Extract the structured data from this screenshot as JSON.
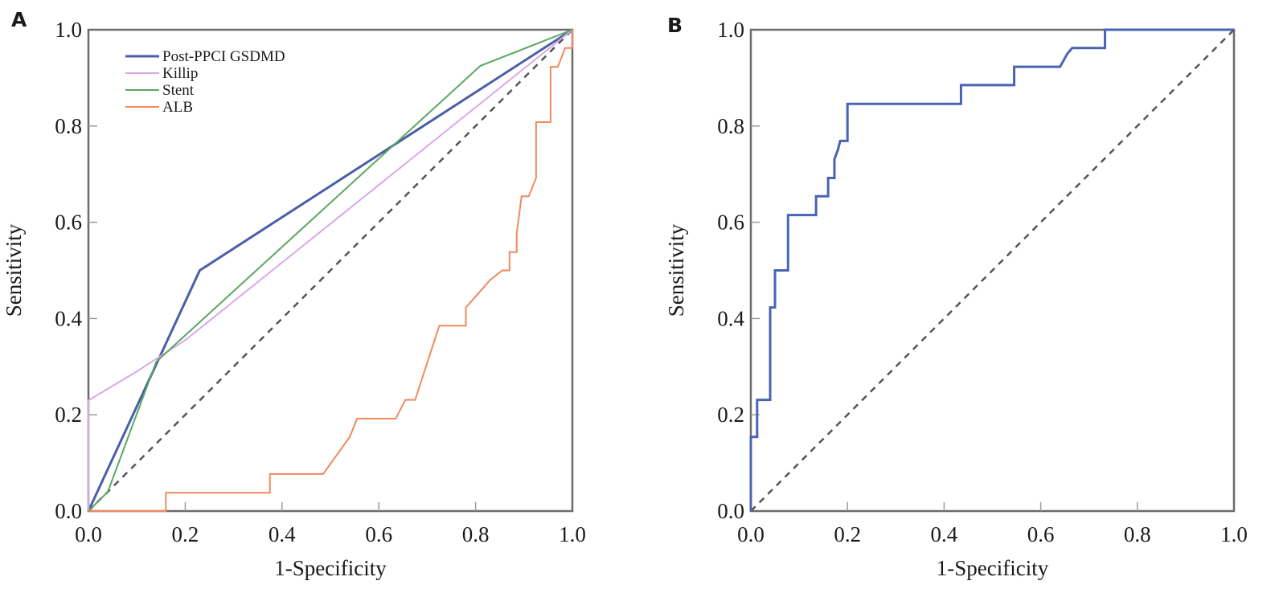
{
  "chart_data": [
    {
      "panel": "A",
      "type": "line",
      "title": "",
      "xlabel": "1-Specificity",
      "ylabel": "Sensitivity",
      "xlim": [
        0,
        1
      ],
      "ylim": [
        0,
        1
      ],
      "x_ticks": [
        "0.0",
        "0.2",
        "0.4",
        "0.6",
        "0.8",
        "1.0"
      ],
      "y_ticks": [
        "0.0",
        "0.2",
        "0.4",
        "0.6",
        "0.8",
        "1.0"
      ],
      "grid": false,
      "legend_position": "top-left",
      "reference_line": {
        "name": "Reference",
        "color": "#555555",
        "style": "dashed",
        "points": [
          [
            0,
            0
          ],
          [
            1,
            1
          ]
        ]
      },
      "series": [
        {
          "name": "Post-PPCI GSDMD",
          "color": "#4a5fa8",
          "points": [
            [
              0,
              0
            ],
            [
              0.23,
              0.5
            ],
            [
              1,
              1
            ]
          ]
        },
        {
          "name": "Killip",
          "color": "#d8a8e8",
          "points": [
            [
              0,
              0
            ],
            [
              0,
              0.23
            ],
            [
              0.1,
              0.29
            ],
            [
              0.2,
              0.355
            ],
            [
              1,
              1
            ]
          ]
        },
        {
          "name": "Stent",
          "color": "#5aa860",
          "points": [
            [
              0,
              0
            ],
            [
              0.04,
              0.04
            ],
            [
              0.14,
              0.31
            ],
            [
              0.81,
              0.925
            ],
            [
              1,
              1
            ]
          ]
        },
        {
          "name": "ALB",
          "color": "#f08a5d",
          "points": [
            [
              0,
              0
            ],
            [
              0.16,
              0
            ],
            [
              0.16,
              0.038
            ],
            [
              0.375,
              0.038
            ],
            [
              0.375,
              0.077
            ],
            [
              0.485,
              0.077
            ],
            [
              0.54,
              0.154
            ],
            [
              0.555,
              0.192
            ],
            [
              0.635,
              0.192
            ],
            [
              0.655,
              0.231
            ],
            [
              0.675,
              0.231
            ],
            [
              0.725,
              0.385
            ],
            [
              0.78,
              0.385
            ],
            [
              0.78,
              0.423
            ],
            [
              0.795,
              0.44
            ],
            [
              0.83,
              0.48
            ],
            [
              0.855,
              0.5
            ],
            [
              0.87,
              0.5
            ],
            [
              0.87,
              0.538
            ],
            [
              0.885,
              0.538
            ],
            [
              0.885,
              0.577
            ],
            [
              0.895,
              0.654
            ],
            [
              0.91,
              0.654
            ],
            [
              0.925,
              0.692
            ],
            [
              0.925,
              0.808
            ],
            [
              0.955,
              0.808
            ],
            [
              0.955,
              0.923
            ],
            [
              0.97,
              0.923
            ],
            [
              0.985,
              0.962
            ],
            [
              1,
              0.962
            ],
            [
              1,
              1
            ]
          ]
        }
      ]
    },
    {
      "panel": "B",
      "type": "line",
      "title": "",
      "xlabel": "1-Specificity",
      "ylabel": "Sensitivity",
      "xlim": [
        0,
        1
      ],
      "ylim": [
        0,
        1
      ],
      "x_ticks": [
        "0.0",
        "0.2",
        "0.4",
        "0.6",
        "0.8",
        "1.0"
      ],
      "y_ticks": [
        "0.0",
        "0.2",
        "0.4",
        "0.6",
        "0.8",
        "1.0"
      ],
      "grid": false,
      "reference_line": {
        "name": "Reference",
        "color": "#555555",
        "style": "dashed",
        "points": [
          [
            0,
            0
          ],
          [
            1,
            1
          ]
        ]
      },
      "series": [
        {
          "name": "ROC",
          "color": "#4a64b4",
          "points": [
            [
              0,
              0
            ],
            [
              0,
              0.154
            ],
            [
              0.013,
              0.154
            ],
            [
              0.013,
              0.231
            ],
            [
              0.04,
              0.231
            ],
            [
              0.04,
              0.423
            ],
            [
              0.05,
              0.423
            ],
            [
              0.05,
              0.5
            ],
            [
              0.077,
              0.5
            ],
            [
              0.077,
              0.615
            ],
            [
              0.135,
              0.615
            ],
            [
              0.135,
              0.654
            ],
            [
              0.16,
              0.654
            ],
            [
              0.16,
              0.692
            ],
            [
              0.173,
              0.692
            ],
            [
              0.173,
              0.731
            ],
            [
              0.18,
              0.75
            ],
            [
              0.185,
              0.769
            ],
            [
              0.2,
              0.769
            ],
            [
              0.2,
              0.846
            ],
            [
              0.435,
              0.846
            ],
            [
              0.435,
              0.885
            ],
            [
              0.545,
              0.885
            ],
            [
              0.545,
              0.923
            ],
            [
              0.64,
              0.923
            ],
            [
              0.655,
              0.95
            ],
            [
              0.665,
              0.962
            ],
            [
              0.733,
              0.962
            ],
            [
              0.733,
              1.0
            ],
            [
              1,
              1
            ]
          ]
        }
      ]
    }
  ]
}
